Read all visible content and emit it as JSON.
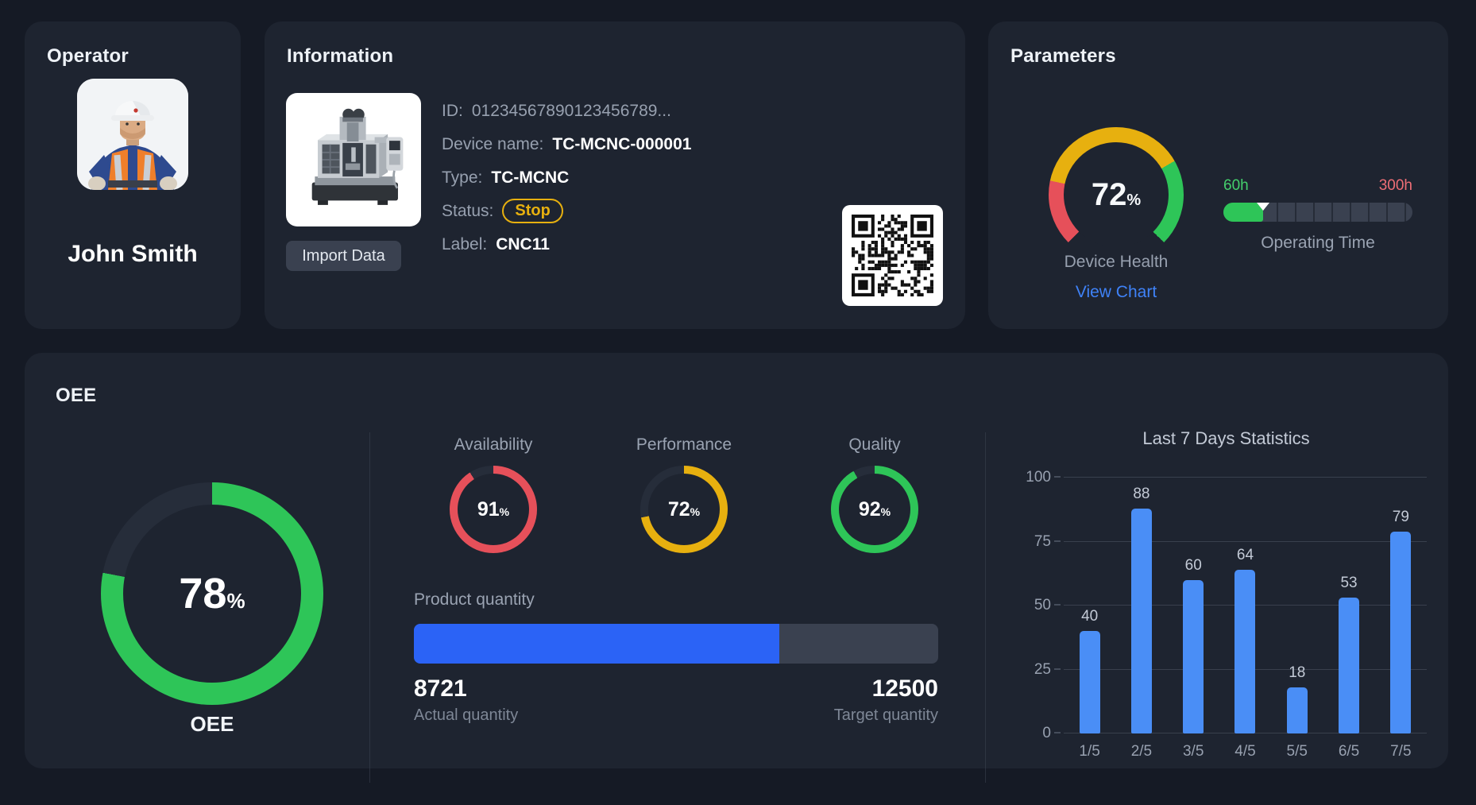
{
  "theme": {
    "page_bg": "#151a25",
    "card_bg": "#1e2430",
    "ring_track": "#262d3a",
    "green": "#2ec558",
    "red": "#e6505a",
    "yellow": "#e7b00f",
    "progress_blue": "#2b63f6",
    "chart_bar_blue": "#4a8ef6",
    "link_blue": "#3f82f7"
  },
  "operator": {
    "title": "Operator",
    "name": "John Smith",
    "photo_icon": "operator-photo"
  },
  "information": {
    "title": "Information",
    "import_button": "Import Data",
    "machine_icon": "cnc-machine-photo",
    "qr_icon": "qr-code",
    "fields": [
      {
        "label": "ID:",
        "value": "01234567890123456789..."
      },
      {
        "label": "Device name:",
        "value": "TC-MCNC-000001"
      },
      {
        "label": "Type:",
        "value": "TC-MCNC"
      },
      {
        "label": "Status:",
        "value": "Stop"
      },
      {
        "label": "Label:",
        "value": "CNC11"
      }
    ]
  },
  "parameters": {
    "title": "Parameters",
    "device_health": {
      "value": 72,
      "unit": "%",
      "label": "Device Health",
      "link": "View Chart",
      "start_angle": 225,
      "span": 270,
      "segments": [
        {
          "color": "#e6505a",
          "from": 0,
          "to": 57
        },
        {
          "color": "#e7b00f",
          "from": 57,
          "to": 195
        },
        {
          "color": "#2ec558",
          "from": 195,
          "to": 270
        }
      ]
    },
    "operating_time": {
      "label": "Operating Time",
      "min": "60h",
      "max": "300h",
      "progress_pct": 21
    }
  },
  "oee": {
    "title": "OEE",
    "gauge": {
      "value": 78,
      "unit": "%",
      "label": "OEE",
      "color": "#2ec558"
    },
    "metrics": [
      {
        "label": "Availability",
        "value": 91,
        "unit": "%",
        "color": "#e6505a"
      },
      {
        "label": "Performance",
        "value": 72,
        "unit": "%",
        "color": "#e7b00f"
      },
      {
        "label": "Quality",
        "value": 92,
        "unit": "%",
        "color": "#2ec558"
      }
    ],
    "product_quantity": {
      "label": "Product quantity",
      "actual": 8721,
      "actual_label": "Actual quantity",
      "target": 12500,
      "target_label": "Target quantity"
    }
  },
  "chart_data": {
    "type": "bar",
    "title": "Last 7 Days Statistics",
    "categories": [
      "1/5",
      "2/5",
      "3/5",
      "4/5",
      "5/5",
      "6/5",
      "7/5"
    ],
    "values": [
      40,
      88,
      60,
      64,
      18,
      53,
      79
    ],
    "xlabel": "",
    "ylabel": "",
    "ylim": [
      0,
      100
    ],
    "yticks": [
      0,
      25,
      50,
      75,
      100
    ],
    "grid": true,
    "legend": false,
    "bar_color": "#4a8ef6"
  }
}
